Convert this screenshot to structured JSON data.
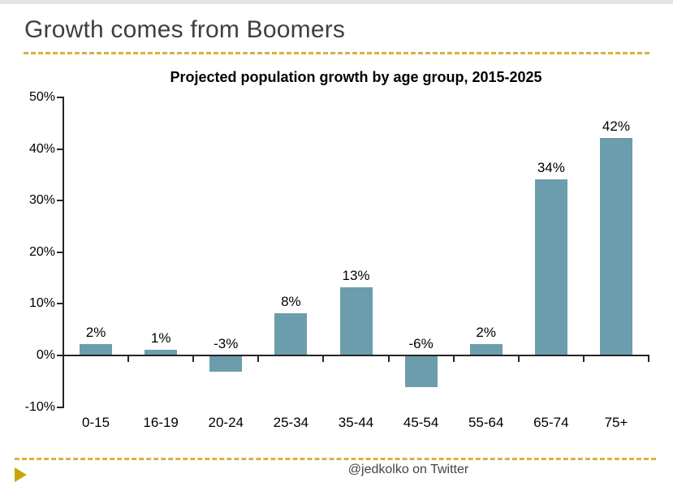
{
  "page": {
    "title": "Growth comes from Boomers",
    "footer": "@jedkolko on Twitter"
  },
  "chart_data": {
    "type": "bar",
    "title": "Projected population growth by age group, 2015-2025",
    "categories": [
      "0-15",
      "16-19",
      "20-24",
      "25-34",
      "35-44",
      "45-54",
      "55-64",
      "65-74",
      "75+"
    ],
    "values": [
      2,
      1,
      -3,
      8,
      13,
      -6,
      2,
      34,
      42
    ],
    "value_labels": [
      "2%",
      "1%",
      "-3%",
      "8%",
      "13%",
      "-6%",
      "2%",
      "34%",
      "42%"
    ],
    "xlabel": "",
    "ylabel": "",
    "ylim": [
      -10,
      50
    ],
    "ytick_values": [
      50,
      40,
      30,
      20,
      10,
      0,
      -10
    ],
    "ytick_labels": [
      "50%",
      "40%",
      "30%",
      "20%",
      "10%",
      "0%",
      "-10%"
    ],
    "grid": false,
    "legend": false,
    "bar_color": "#6c9dac"
  },
  "colors": {
    "bar_teal": "#6c9dac",
    "accent_gold_dash": "#d6b33f",
    "accent_gold_arrow": "#c9a408",
    "title_gray": "#3f3f3f",
    "axis_black": "#262626",
    "top_strip_gray": "#e3e3e3"
  }
}
